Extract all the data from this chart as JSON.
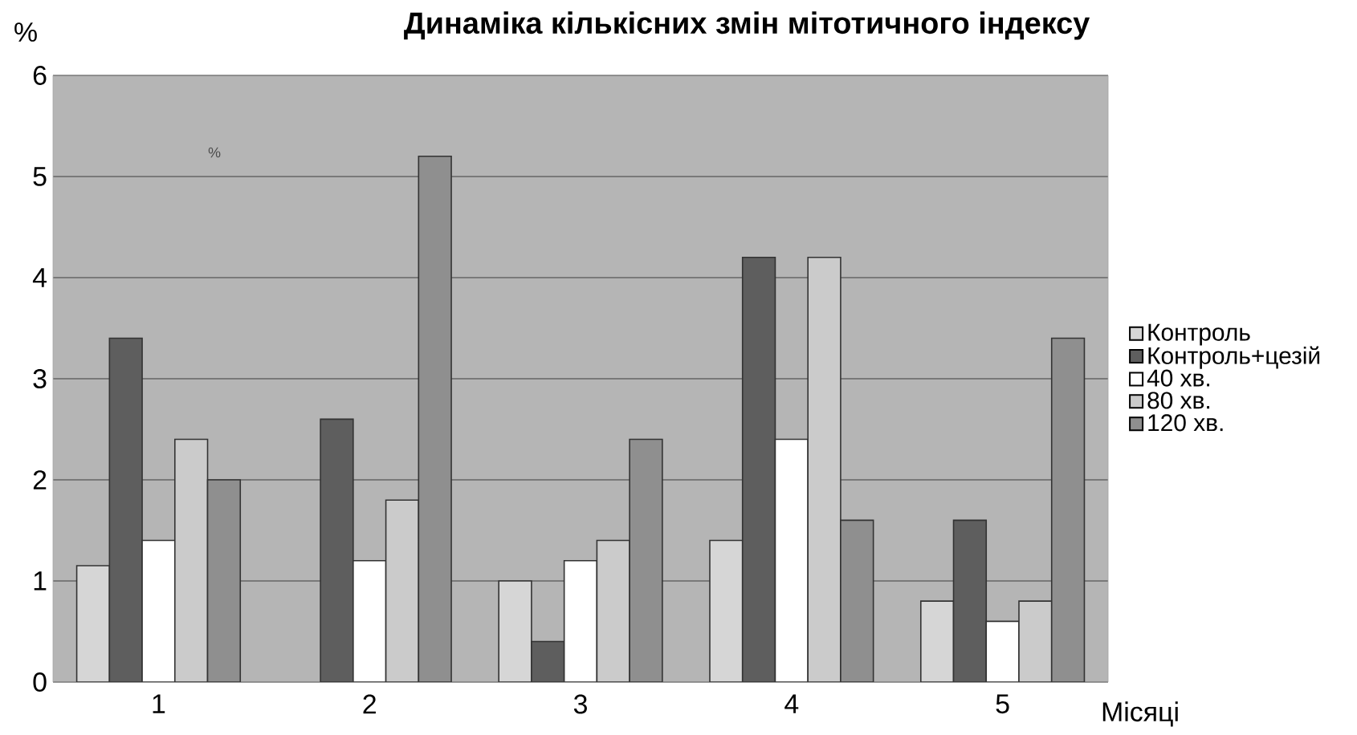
{
  "chart_data": {
    "type": "bar",
    "title": "Динаміка кількісних змін мітотичного індексу",
    "ylabel": "%",
    "xlabel": "Місяці",
    "categories": [
      "1",
      "2",
      "3",
      "4",
      "5"
    ],
    "series": [
      {
        "name": "Контроль",
        "color": "#d6d6d6",
        "values": [
          1.15,
          null,
          1.0,
          1.4,
          0.8
        ]
      },
      {
        "name": "Контроль+цезій",
        "color": "#5e5e5e",
        "values": [
          3.4,
          2.6,
          0.4,
          4.2,
          1.6
        ]
      },
      {
        "name": "40 хв.",
        "color": "#ffffff",
        "values": [
          1.4,
          1.2,
          1.2,
          2.4,
          0.6
        ]
      },
      {
        "name": "80 хв.",
        "color": "#cbcbcb",
        "values": [
          2.4,
          1.8,
          1.4,
          4.2,
          0.8
        ]
      },
      {
        "name": "120 хв.",
        "color": "#8f8f8f",
        "values": [
          2.0,
          5.2,
          2.4,
          1.6,
          3.4
        ]
      }
    ],
    "ylim": [
      0,
      6
    ],
    "yticks": [
      0,
      1,
      2,
      3,
      4,
      5,
      6
    ],
    "grid": "y",
    "legend": "right",
    "annotations": [
      "%"
    ]
  }
}
